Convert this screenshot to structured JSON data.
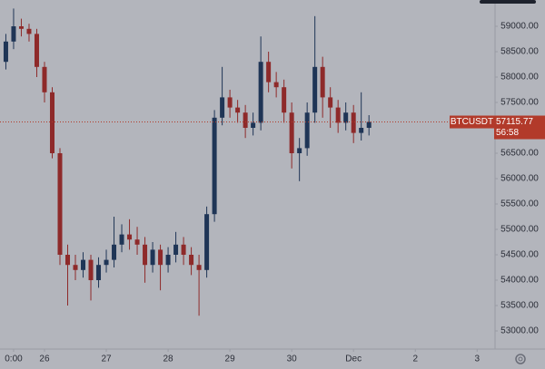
{
  "chart_data": {
    "type": "candlestick",
    "symbol": "BTCUSDT",
    "last_price": 57115.77,
    "countdown": "56:58",
    "up_color": "#1f3556",
    "down_color": "#8e2a2a",
    "price_line_color": "#b23a2a",
    "x": [
      -0.625,
      -0.5,
      -0.375,
      -0.25,
      -0.125,
      0,
      0.125,
      0.25,
      0.375,
      0.5,
      0.625,
      0.75,
      0.875,
      1,
      1.125,
      1.25,
      1.375,
      1.5,
      1.625,
      1.75,
      1.875,
      2,
      2.125,
      2.25,
      2.375,
      2.5,
      2.625,
      2.75,
      2.875,
      3,
      3.125,
      3.25,
      3.375,
      3.5,
      3.625,
      3.75,
      3.875,
      4,
      4.125,
      4.25,
      4.375,
      4.5,
      4.625,
      4.75,
      4.875,
      5,
      5.125,
      5.25
    ],
    "open": [
      58300,
      58700,
      59000,
      58950,
      58850,
      58200,
      57700,
      56500,
      54500,
      54300,
      54200,
      54400,
      54000,
      54300,
      54400,
      54700,
      54900,
      54800,
      54700,
      54300,
      54600,
      54300,
      54500,
      54700,
      54500,
      54300,
      54200,
      55300,
      57200,
      57600,
      57400,
      57300,
      57000,
      57100,
      58300,
      57900,
      57800,
      57300,
      56500,
      56600,
      57300,
      58200,
      57600,
      57400,
      57100,
      57300,
      56900,
      57000
    ],
    "high": [
      58850,
      59350,
      59150,
      59050,
      58950,
      58300,
      57800,
      56600,
      54700,
      54500,
      54550,
      54500,
      54450,
      54600,
      55250,
      55100,
      55200,
      55050,
      54850,
      54750,
      54700,
      54650,
      54950,
      54850,
      54650,
      54500,
      55450,
      57350,
      58200,
      57750,
      57550,
      57450,
      57300,
      58800,
      58500,
      58100,
      57950,
      57500,
      56800,
      57500,
      59200,
      58400,
      57800,
      57550,
      57500,
      57450,
      57700,
      57250
    ],
    "low": [
      58150,
      58550,
      58800,
      58700,
      58000,
      57500,
      56400,
      54300,
      53500,
      54000,
      54050,
      53600,
      53850,
      54150,
      54250,
      54550,
      54600,
      54500,
      53950,
      54150,
      53800,
      54150,
      54350,
      54300,
      54100,
      53300,
      54050,
      55150,
      57050,
      57200,
      57100,
      56800,
      56850,
      56950,
      57700,
      57600,
      57100,
      56200,
      55950,
      56450,
      57100,
      57200,
      57000,
      56900,
      56950,
      56700,
      56750,
      56850
    ],
    "close": [
      58700,
      59000,
      58950,
      58850,
      58200,
      57700,
      56500,
      54500,
      54300,
      54200,
      54400,
      54000,
      54300,
      54400,
      54700,
      54900,
      54800,
      54700,
      54300,
      54600,
      54300,
      54500,
      54700,
      54500,
      54300,
      54200,
      55300,
      57200,
      57600,
      57400,
      57300,
      57000,
      57100,
      58300,
      57900,
      57800,
      57300,
      56500,
      56600,
      57300,
      58200,
      57600,
      57400,
      57100,
      57300,
      56900,
      57000,
      57115.77
    ],
    "xlim": [
      -0.72,
      7.29
    ],
    "xticks": [
      {
        "value": -0.5,
        "label": "0:00"
      },
      {
        "value": 0,
        "label": "26"
      },
      {
        "value": 1,
        "label": "27"
      },
      {
        "value": 2,
        "label": "28"
      },
      {
        "value": 3,
        "label": "29"
      },
      {
        "value": 4,
        "label": "30"
      },
      {
        "value": 5,
        "label": "Dec"
      },
      {
        "value": 6,
        "label": "2"
      },
      {
        "value": 7,
        "label": "3"
      }
    ],
    "ylim": [
      52643,
      59518
    ],
    "yticks": [
      {
        "value": 53000,
        "label": "53000.00"
      },
      {
        "value": 53500,
        "label": "53500.00"
      },
      {
        "value": 54000,
        "label": "54000.00"
      },
      {
        "value": 54500,
        "label": "54500.00"
      },
      {
        "value": 55000,
        "label": "55000.00"
      },
      {
        "value": 55500,
        "label": "55500.00"
      },
      {
        "value": 56000,
        "label": "56000.00"
      },
      {
        "value": 56500,
        "label": "56500.00"
      },
      {
        "value": 57000,
        "label": "57000.00"
      },
      {
        "value": 57500,
        "label": "57500.00"
      },
      {
        "value": 58000,
        "label": "58000.00"
      },
      {
        "value": 58500,
        "label": "58500.00"
      },
      {
        "value": 59000,
        "label": "59000.00"
      }
    ]
  }
}
